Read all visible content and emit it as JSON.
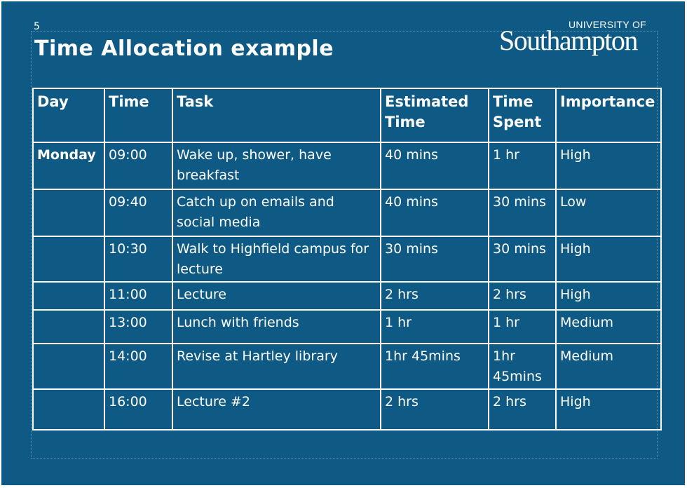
{
  "slide": {
    "number": "5",
    "title": "Time Allocation example",
    "logo": {
      "top": "UNIVERSITY OF",
      "main": "Southampton"
    }
  },
  "table": {
    "headers": [
      "Day",
      "Time",
      "Task",
      "Estimated Time",
      "Time Spent",
      "Importance"
    ],
    "rows": [
      [
        "Monday",
        "09:00",
        "Wake up, shower, have breakfast",
        "40 mins",
        "1 hr",
        "High"
      ],
      [
        "",
        "09:40",
        "Catch up on emails and social media",
        "40 mins",
        "30 mins",
        "Low"
      ],
      [
        "",
        "10:30",
        "Walk to Highfield campus for lecture",
        "30 mins",
        "30 mins",
        "High"
      ],
      [
        "",
        "11:00",
        "Lecture",
        "2 hrs",
        "2 hrs",
        "High"
      ],
      [
        "",
        "13:00",
        "Lunch with friends",
        "1 hr",
        "1 hr",
        "Medium"
      ],
      [
        "",
        "14:00",
        "Revise at Hartley library",
        "1hr 45mins",
        "1hr 45mins",
        "Medium"
      ],
      [
        "",
        "16:00",
        "Lecture #2",
        "2 hrs",
        "2 hrs",
        "High"
      ]
    ]
  }
}
